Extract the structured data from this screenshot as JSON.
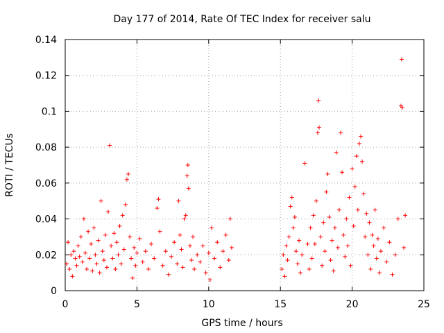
{
  "chart_data": {
    "type": "scatter",
    "title": "Day 177 of 2014, Rate Of TEC Index for receiver salu",
    "xlabel": "GPS time / hours",
    "ylabel": "ROTI / TECUs",
    "xlim": [
      0,
      25
    ],
    "ylim": [
      0,
      0.14
    ],
    "xticks": [
      0,
      5,
      10,
      15,
      20,
      25
    ],
    "yticks": [
      0,
      0.02,
      0.04,
      0.06,
      0.08,
      0.1,
      0.12,
      0.14
    ],
    "xtick_labels": [
      "0",
      "5",
      "10",
      "15",
      "20",
      "25"
    ],
    "ytick_labels": [
      "0",
      "0.02",
      "0.04",
      "0.06",
      "0.08",
      "0.1",
      "0.12",
      "0.14"
    ],
    "grid": true,
    "marker": "+",
    "color": "#ff0000",
    "series": [
      {
        "name": "ROTI",
        "points": [
          [
            0.1,
            0.015
          ],
          [
            0.2,
            0.027
          ],
          [
            0.3,
            0.012
          ],
          [
            0.4,
            0.02
          ],
          [
            0.5,
            0.008
          ],
          [
            0.6,
            0.022
          ],
          [
            0.7,
            0.018
          ],
          [
            0.8,
            0.014
          ],
          [
            0.9,
            0.025
          ],
          [
            1.0,
            0.019
          ],
          [
            1.1,
            0.03
          ],
          [
            1.2,
            0.016
          ],
          [
            1.3,
            0.04
          ],
          [
            1.4,
            0.021
          ],
          [
            1.5,
            0.012
          ],
          [
            1.6,
            0.033
          ],
          [
            1.7,
            0.018
          ],
          [
            1.8,
            0.026
          ],
          [
            1.9,
            0.011
          ],
          [
            2.0,
            0.035
          ],
          [
            2.1,
            0.02
          ],
          [
            2.2,
            0.015
          ],
          [
            2.3,
            0.028
          ],
          [
            2.4,
            0.01
          ],
          [
            2.5,
            0.05
          ],
          [
            2.6,
            0.022
          ],
          [
            2.7,
            0.017
          ],
          [
            2.8,
            0.031
          ],
          [
            2.9,
            0.013
          ],
          [
            3.0,
            0.044
          ],
          [
            3.1,
            0.081
          ],
          [
            3.2,
            0.025
          ],
          [
            3.3,
            0.018
          ],
          [
            3.4,
            0.032
          ],
          [
            3.5,
            0.012
          ],
          [
            3.6,
            0.027
          ],
          [
            3.7,
            0.02
          ],
          [
            3.8,
            0.036
          ],
          [
            3.9,
            0.015
          ],
          [
            4.0,
            0.042
          ],
          [
            4.1,
            0.023
          ],
          [
            4.2,
            0.048
          ],
          [
            4.3,
            0.062
          ],
          [
            4.4,
            0.065
          ],
          [
            4.5,
            0.03
          ],
          [
            4.6,
            0.018
          ],
          [
            4.7,
            0.007
          ],
          [
            4.8,
            0.024
          ],
          [
            4.9,
            0.014
          ],
          [
            5.0,
            0.021
          ],
          [
            5.2,
            0.029
          ],
          [
            5.4,
            0.016
          ],
          [
            5.6,
            0.022
          ],
          [
            5.8,
            0.012
          ],
          [
            6.0,
            0.026
          ],
          [
            6.2,
            0.018
          ],
          [
            6.4,
            0.046
          ],
          [
            6.5,
            0.051
          ],
          [
            6.6,
            0.033
          ],
          [
            6.8,
            0.014
          ],
          [
            7.0,
            0.022
          ],
          [
            7.2,
            0.009
          ],
          [
            7.4,
            0.019
          ],
          [
            7.6,
            0.027
          ],
          [
            7.8,
            0.015
          ],
          [
            7.9,
            0.05
          ],
          [
            8.0,
            0.031
          ],
          [
            8.1,
            0.023
          ],
          [
            8.2,
            0.013
          ],
          [
            8.3,
            0.04
          ],
          [
            8.4,
            0.042
          ],
          [
            8.5,
            0.064
          ],
          [
            8.55,
            0.07
          ],
          [
            8.6,
            0.057
          ],
          [
            8.7,
            0.025
          ],
          [
            8.8,
            0.017
          ],
          [
            8.9,
            0.03
          ],
          [
            9.0,
            0.012
          ],
          [
            9.2,
            0.02
          ],
          [
            9.4,
            0.016
          ],
          [
            9.6,
            0.025
          ],
          [
            9.8,
            0.01
          ],
          [
            10.0,
            0.021
          ],
          [
            10.1,
            0.006
          ],
          [
            10.2,
            0.035
          ],
          [
            10.4,
            0.018
          ],
          [
            10.6,
            0.027
          ],
          [
            10.8,
            0.013
          ],
          [
            11.0,
            0.022
          ],
          [
            11.2,
            0.031
          ],
          [
            11.4,
            0.017
          ],
          [
            11.5,
            0.04
          ],
          [
            11.6,
            0.024
          ],
          [
            15.1,
            0.012
          ],
          [
            15.2,
            0.02
          ],
          [
            15.3,
            0.008
          ],
          [
            15.4,
            0.025
          ],
          [
            15.5,
            0.017
          ],
          [
            15.6,
            0.03
          ],
          [
            15.7,
            0.047
          ],
          [
            15.8,
            0.052
          ],
          [
            15.9,
            0.035
          ],
          [
            16.0,
            0.041
          ],
          [
            16.1,
            0.022
          ],
          [
            16.2,
            0.015
          ],
          [
            16.3,
            0.028
          ],
          [
            16.4,
            0.01
          ],
          [
            16.5,
            0.02
          ],
          [
            16.7,
            0.071
          ],
          [
            16.9,
            0.026
          ],
          [
            17.0,
            0.012
          ],
          [
            17.1,
            0.035
          ],
          [
            17.2,
            0.018
          ],
          [
            17.3,
            0.042
          ],
          [
            17.4,
            0.026
          ],
          [
            17.5,
            0.05
          ],
          [
            17.6,
            0.088
          ],
          [
            17.65,
            0.106
          ],
          [
            17.7,
            0.091
          ],
          [
            17.8,
            0.03
          ],
          [
            17.9,
            0.014
          ],
          [
            18.0,
            0.038
          ],
          [
            18.1,
            0.022
          ],
          [
            18.2,
            0.055
          ],
          [
            18.3,
            0.065
          ],
          [
            18.4,
            0.041
          ],
          [
            18.5,
            0.017
          ],
          [
            18.6,
            0.028
          ],
          [
            18.7,
            0.011
          ],
          [
            18.8,
            0.035
          ],
          [
            18.9,
            0.077
          ],
          [
            19.0,
            0.024
          ],
          [
            19.1,
            0.045
          ],
          [
            19.2,
            0.088
          ],
          [
            19.3,
            0.066
          ],
          [
            19.4,
            0.031
          ],
          [
            19.5,
            0.019
          ],
          [
            19.6,
            0.04
          ],
          [
            19.7,
            0.025
          ],
          [
            19.8,
            0.052
          ],
          [
            19.9,
            0.014
          ],
          [
            20.0,
            0.068
          ],
          [
            20.1,
            0.036
          ],
          [
            20.2,
            0.058
          ],
          [
            20.3,
            0.075
          ],
          [
            20.4,
            0.045
          ],
          [
            20.5,
            0.082
          ],
          [
            20.6,
            0.086
          ],
          [
            20.7,
            0.072
          ],
          [
            20.8,
            0.054
          ],
          [
            20.9,
            0.03
          ],
          [
            21.0,
            0.043
          ],
          [
            21.1,
            0.02
          ],
          [
            21.2,
            0.038
          ],
          [
            21.3,
            0.012
          ],
          [
            21.4,
            0.031
          ],
          [
            21.5,
            0.025
          ],
          [
            21.6,
            0.045
          ],
          [
            21.7,
            0.018
          ],
          [
            21.8,
            0.029
          ],
          [
            21.9,
            0.01
          ],
          [
            22.0,
            0.022
          ],
          [
            22.2,
            0.035
          ],
          [
            22.4,
            0.016
          ],
          [
            22.6,
            0.027
          ],
          [
            22.8,
            0.009
          ],
          [
            23.0,
            0.02
          ],
          [
            23.2,
            0.04
          ],
          [
            23.4,
            0.103
          ],
          [
            23.45,
            0.129
          ],
          [
            23.5,
            0.102
          ],
          [
            23.6,
            0.024
          ],
          [
            23.7,
            0.042
          ]
        ]
      }
    ]
  }
}
